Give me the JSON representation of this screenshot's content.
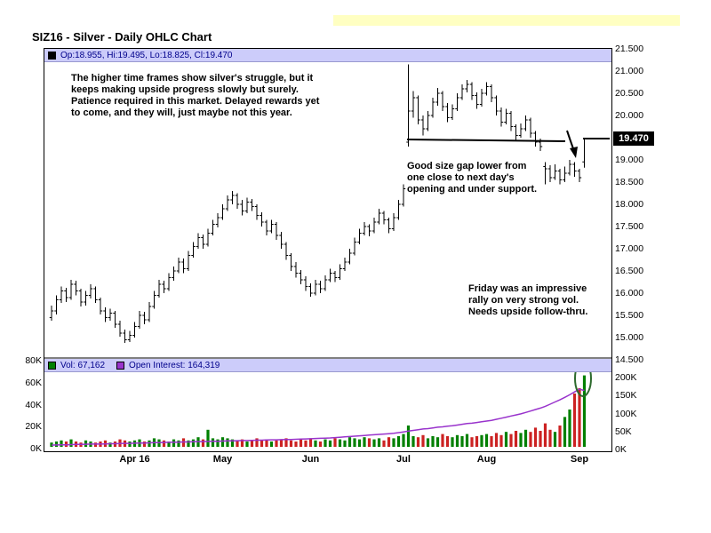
{
  "page": {
    "title": "SIZ16 - Silver - Daily OHLC Chart"
  },
  "legend": {
    "ohlc_label": "Op:18.955, Hi:19.495, Lo:18.825, Cl:19.470",
    "vol_label": "Vol: 67,162",
    "oi_label": "Open Interest: 164,319"
  },
  "price_tag": "19.470",
  "annotations": {
    "a1": "The higher time frames show silver's struggle, but it\nkeeps making upside progress slowly but surely.\nPatience required in this market.  Delayed rewards yet\nto come, and they will, just maybe not this year.",
    "a2": "Good size gap lower from\none close to next day's\nopening and under support.",
    "a3": "Friday was an impressive\nrally on very strong vol.\nNeeds upside follow-thru."
  },
  "chart_data": {
    "type": "ohlc",
    "title": "SIZ16 - Silver - Daily OHLC Chart",
    "ylim": [
      14.5,
      21.5
    ],
    "price_ticks": [
      "21.500",
      "21.000",
      "20.500",
      "20.000",
      "19.500",
      "19.000",
      "18.500",
      "18.000",
      "17.500",
      "17.000",
      "16.500",
      "16.000",
      "15.500",
      "15.000",
      "14.500"
    ],
    "vol_ticks": [
      "80K",
      "60K",
      "40K",
      "20K",
      "0K"
    ],
    "oi_ticks": [
      "200K",
      "150K",
      "100K",
      "50K",
      "0K"
    ],
    "x_ticks": [
      {
        "label": "Apr 16",
        "i": 17
      },
      {
        "label": "May",
        "i": 35
      },
      {
        "label": "Jun",
        "i": 53
      },
      {
        "label": "Jul",
        "i": 72
      },
      {
        "label": "Aug",
        "i": 89
      },
      {
        "label": "Sep",
        "i": 108
      }
    ],
    "last_bar": {
      "open": 18.955,
      "high": 19.495,
      "low": 18.825,
      "close": 19.47
    },
    "last_volume": 67162,
    "last_open_interest": 164319,
    "ohlc": [
      [
        15.45,
        15.72,
        15.38,
        15.6
      ],
      [
        15.6,
        15.95,
        15.52,
        15.85
      ],
      [
        15.85,
        16.15,
        15.78,
        16.05
      ],
      [
        16.05,
        16.12,
        15.8,
        15.9
      ],
      [
        15.9,
        16.3,
        15.85,
        16.2
      ],
      [
        16.2,
        16.28,
        15.95,
        16.05
      ],
      [
        16.05,
        16.1,
        15.7,
        15.8
      ],
      [
        15.8,
        16.05,
        15.72,
        15.95
      ],
      [
        15.95,
        16.2,
        15.88,
        16.1
      ],
      [
        16.1,
        16.15,
        15.78,
        15.85
      ],
      [
        15.85,
        15.9,
        15.52,
        15.6
      ],
      [
        15.6,
        15.68,
        15.35,
        15.45
      ],
      [
        15.45,
        15.65,
        15.38,
        15.55
      ],
      [
        15.55,
        15.6,
        15.22,
        15.3
      ],
      [
        15.3,
        15.38,
        15.02,
        15.1
      ],
      [
        15.1,
        15.18,
        14.88,
        14.95
      ],
      [
        14.95,
        15.15,
        14.9,
        15.05
      ],
      [
        15.05,
        15.35,
        15.0,
        15.25
      ],
      [
        15.25,
        15.6,
        15.2,
        15.5
      ],
      [
        15.5,
        15.58,
        15.3,
        15.4
      ],
      [
        15.4,
        15.8,
        15.35,
        15.7
      ],
      [
        15.7,
        16.05,
        15.65,
        15.95
      ],
      [
        15.95,
        16.3,
        15.9,
        16.2
      ],
      [
        16.2,
        16.28,
        16.0,
        16.1
      ],
      [
        16.1,
        16.45,
        16.05,
        16.35
      ],
      [
        16.35,
        16.6,
        16.28,
        16.5
      ],
      [
        16.5,
        16.8,
        16.45,
        16.7
      ],
      [
        16.7,
        16.78,
        16.45,
        16.55
      ],
      [
        16.55,
        16.95,
        16.5,
        16.85
      ],
      [
        16.85,
        17.15,
        16.8,
        17.05
      ],
      [
        17.05,
        17.35,
        17.0,
        17.25
      ],
      [
        17.25,
        17.32,
        17.0,
        17.1
      ],
      [
        17.1,
        17.45,
        17.05,
        17.35
      ],
      [
        17.35,
        17.65,
        17.3,
        17.55
      ],
      [
        17.55,
        17.8,
        17.48,
        17.7
      ],
      [
        17.7,
        18.0,
        17.65,
        17.9
      ],
      [
        17.9,
        18.2,
        17.85,
        18.1
      ],
      [
        18.1,
        18.3,
        18.0,
        18.2
      ],
      [
        18.2,
        18.25,
        17.9,
        18.0
      ],
      [
        18.0,
        18.1,
        17.75,
        17.85
      ],
      [
        17.85,
        18.15,
        17.8,
        18.05
      ],
      [
        18.05,
        18.12,
        17.85,
        17.95
      ],
      [
        17.95,
        18.0,
        17.65,
        17.75
      ],
      [
        17.75,
        17.82,
        17.5,
        17.6
      ],
      [
        17.6,
        17.65,
        17.3,
        17.4
      ],
      [
        17.4,
        17.65,
        17.35,
        17.55
      ],
      [
        17.55,
        17.6,
        17.2,
        17.3
      ],
      [
        17.3,
        17.38,
        17.0,
        17.1
      ],
      [
        17.1,
        17.15,
        16.75,
        16.85
      ],
      [
        16.85,
        16.9,
        16.5,
        16.6
      ],
      [
        16.6,
        16.7,
        16.35,
        16.45
      ],
      [
        16.45,
        16.52,
        16.2,
        16.3
      ],
      [
        16.3,
        16.38,
        16.05,
        16.15
      ],
      [
        16.15,
        16.22,
        15.92,
        16.0
      ],
      [
        16.0,
        16.3,
        15.95,
        16.2
      ],
      [
        16.2,
        16.28,
        16.0,
        16.1
      ],
      [
        16.1,
        16.4,
        16.05,
        16.3
      ],
      [
        16.3,
        16.55,
        16.25,
        16.45
      ],
      [
        16.45,
        16.5,
        16.25,
        16.35
      ],
      [
        16.35,
        16.65,
        16.3,
        16.55
      ],
      [
        16.55,
        16.8,
        16.5,
        16.7
      ],
      [
        16.7,
        17.0,
        16.65,
        16.9
      ],
      [
        16.9,
        17.25,
        16.85,
        17.15
      ],
      [
        17.15,
        17.45,
        17.1,
        17.35
      ],
      [
        17.35,
        17.6,
        17.3,
        17.5
      ],
      [
        17.5,
        17.55,
        17.28,
        17.4
      ],
      [
        17.4,
        17.7,
        17.35,
        17.6
      ],
      [
        17.6,
        17.9,
        17.55,
        17.8
      ],
      [
        17.8,
        17.85,
        17.55,
        17.65
      ],
      [
        17.65,
        17.7,
        17.35,
        17.45
      ],
      [
        17.45,
        17.8,
        17.4,
        17.7
      ],
      [
        17.7,
        18.1,
        17.65,
        18.0
      ],
      [
        18.0,
        18.45,
        17.95,
        18.35
      ],
      [
        19.4,
        21.15,
        19.3,
        20.1
      ],
      [
        20.1,
        20.55,
        19.95,
        20.4
      ],
      [
        20.4,
        20.45,
        19.8,
        19.9
      ],
      [
        19.9,
        20.0,
        19.55,
        19.7
      ],
      [
        19.7,
        20.1,
        19.65,
        20.0
      ],
      [
        20.0,
        20.4,
        19.95,
        20.3
      ],
      [
        20.3,
        20.62,
        20.22,
        20.5
      ],
      [
        20.5,
        20.55,
        20.1,
        20.2
      ],
      [
        20.2,
        20.28,
        19.85,
        19.95
      ],
      [
        19.95,
        20.25,
        19.9,
        20.15
      ],
      [
        20.15,
        20.5,
        20.1,
        20.4
      ],
      [
        20.4,
        20.7,
        20.35,
        20.6
      ],
      [
        20.6,
        20.8,
        20.52,
        20.7
      ],
      [
        20.7,
        20.75,
        20.35,
        20.45
      ],
      [
        20.45,
        20.52,
        20.15,
        20.25
      ],
      [
        20.25,
        20.6,
        20.2,
        20.5
      ],
      [
        20.5,
        20.75,
        20.45,
        20.65
      ],
      [
        20.65,
        20.7,
        20.3,
        20.4
      ],
      [
        20.4,
        20.45,
        20.0,
        20.1
      ],
      [
        20.1,
        20.18,
        19.75,
        19.85
      ],
      [
        19.85,
        20.15,
        19.8,
        20.05
      ],
      [
        20.05,
        20.1,
        19.65,
        19.75
      ],
      [
        19.75,
        19.8,
        19.45,
        19.55
      ],
      [
        19.55,
        19.82,
        19.5,
        19.7
      ],
      [
        19.7,
        20.0,
        19.65,
        19.9
      ],
      [
        19.9,
        19.95,
        19.5,
        19.6
      ],
      [
        19.6,
        19.65,
        19.3,
        19.4
      ],
      [
        19.4,
        19.48,
        19.2,
        19.3
      ],
      [
        18.85,
        18.95,
        18.45,
        18.8
      ],
      [
        18.8,
        18.88,
        18.5,
        18.6
      ],
      [
        18.6,
        18.9,
        18.55,
        18.75
      ],
      [
        18.75,
        18.8,
        18.45,
        18.55
      ],
      [
        18.55,
        18.85,
        18.5,
        18.7
      ],
      [
        18.7,
        19.0,
        18.65,
        18.9
      ],
      [
        18.9,
        18.95,
        18.62,
        18.75
      ],
      [
        18.75,
        18.8,
        18.5,
        18.6
      ],
      [
        18.955,
        19.495,
        18.825,
        19.47
      ]
    ],
    "volume_k": [
      4,
      5,
      6,
      5,
      7,
      5,
      4,
      6,
      5,
      4,
      5,
      6,
      4,
      5,
      7,
      6,
      5,
      6,
      7,
      5,
      6,
      8,
      7,
      6,
      5,
      7,
      6,
      8,
      6,
      7,
      9,
      7,
      16,
      8,
      7,
      9,
      8,
      7,
      6,
      7,
      5,
      6,
      8,
      6,
      7,
      5,
      6,
      7,
      8,
      6,
      5,
      7,
      6,
      8,
      6,
      5,
      7,
      6,
      8,
      7,
      6,
      9,
      8,
      7,
      9,
      8,
      7,
      8,
      6,
      9,
      8,
      10,
      12,
      20,
      10,
      9,
      11,
      8,
      10,
      9,
      12,
      10,
      9,
      11,
      10,
      12,
      9,
      10,
      11,
      12,
      10,
      13,
      11,
      14,
      12,
      15,
      13,
      16,
      14,
      18,
      15,
      22,
      16,
      14,
      20,
      28,
      35,
      50,
      55,
      67
    ],
    "open_interest_k": [
      12,
      12.5,
      13,
      13,
      13.5,
      14,
      14,
      14.5,
      15,
      15,
      15,
      15.5,
      16,
      16,
      16.5,
      17,
      17,
      17.5,
      18,
      18,
      18.5,
      19,
      19,
      19.5,
      20,
      20,
      20.5,
      21,
      21,
      21.5,
      22,
      22,
      22.5,
      23,
      23,
      23.5,
      24,
      24,
      24.5,
      25,
      25,
      25.5,
      26,
      26,
      26.5,
      27,
      27,
      27.5,
      28,
      28,
      28.5,
      29,
      29.5,
      30,
      30.5,
      31,
      31.5,
      32,
      33,
      34,
      35,
      36,
      37,
      38,
      39,
      40,
      41,
      42,
      43,
      44,
      45,
      47,
      49,
      51,
      53,
      55,
      57,
      58,
      60,
      62,
      63,
      65,
      66,
      68,
      70,
      72,
      73,
      75,
      77,
      79,
      81,
      84,
      87,
      90,
      93,
      96,
      99,
      103,
      107,
      111,
      115,
      120,
      126,
      132,
      138,
      145,
      152,
      160,
      168,
      164
    ]
  }
}
